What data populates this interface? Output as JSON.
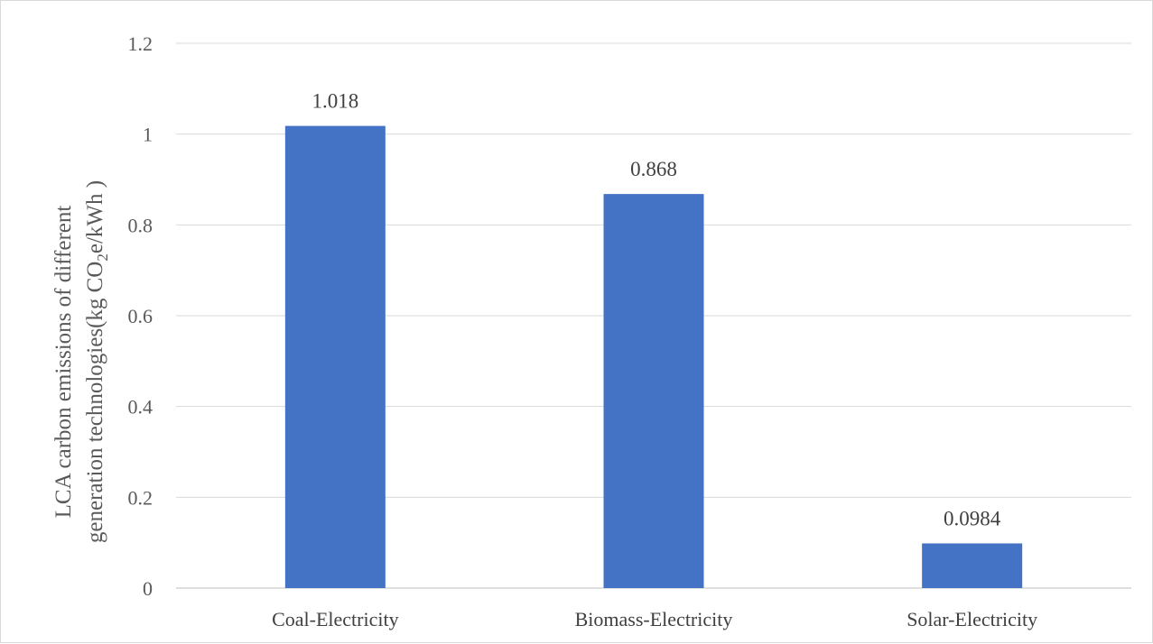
{
  "chart_data": {
    "type": "bar",
    "categories": [
      "Coal-Electricity",
      "Biomass-Electricity",
      "Solar-Electricity"
    ],
    "values": [
      1.018,
      0.868,
      0.0984
    ],
    "data_labels": [
      "1.018",
      "0.868",
      "0.0984"
    ],
    "title": "",
    "xlabel": "",
    "ylabel": {
      "line1": "LCA carbon emissions of different",
      "line2_prefix": "generation technologies(kg CO",
      "line2_sub": "2",
      "line2_suffix": "e/kWh )"
    },
    "ylim": [
      0,
      1.2
    ],
    "yticks": [
      "0",
      "0.2",
      "0.4",
      "0.6",
      "0.8",
      "1",
      "1.2"
    ],
    "grid": true,
    "bar_color": "#4472C4"
  }
}
